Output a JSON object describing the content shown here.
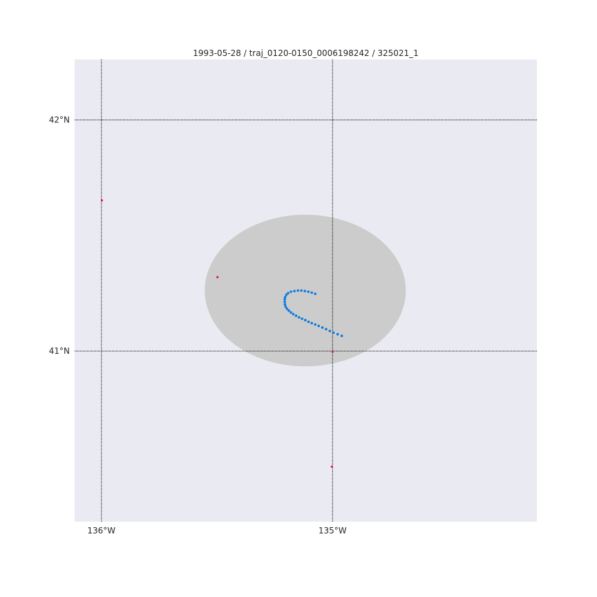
{
  "chart_data": {
    "type": "scatter",
    "title": "1993-05-28 / traj_0120-0150_0006198242 / 325021_1",
    "xlim": [
      -136.116,
      -134.116
    ],
    "ylim": [
      40.262,
      42.262
    ],
    "x_ticks": [
      {
        "value": -136,
        "label": "136°W"
      },
      {
        "value": -135,
        "label": "135°W"
      }
    ],
    "y_ticks": [
      {
        "value": 42,
        "label": "42°N"
      },
      {
        "value": 41,
        "label": "41°N"
      }
    ],
    "grid": true,
    "background_color": "#eaeaf2",
    "region": {
      "shape": "ellipse",
      "center": {
        "lon": -135.118,
        "lat": 41.262
      },
      "radius_lon": 0.435,
      "radius_lat": 0.328,
      "color": "#cccccc"
    },
    "series": [
      {
        "color": "#0b78e0",
        "points": [
          {
            "lon": -135.075,
            "lat": 41.248
          },
          {
            "lon": -135.09,
            "lat": 41.253
          },
          {
            "lon": -135.105,
            "lat": 41.257
          },
          {
            "lon": -135.12,
            "lat": 41.26
          },
          {
            "lon": -135.135,
            "lat": 41.262
          },
          {
            "lon": -135.15,
            "lat": 41.262
          },
          {
            "lon": -135.165,
            "lat": 41.26
          },
          {
            "lon": -135.18,
            "lat": 41.257
          },
          {
            "lon": -135.192,
            "lat": 41.251
          },
          {
            "lon": -135.2,
            "lat": 41.244
          },
          {
            "lon": -135.205,
            "lat": 41.234
          },
          {
            "lon": -135.207,
            "lat": 41.224
          },
          {
            "lon": -135.207,
            "lat": 41.213
          },
          {
            "lon": -135.206,
            "lat": 41.202
          },
          {
            "lon": -135.203,
            "lat": 41.192
          },
          {
            "lon": -135.197,
            "lat": 41.183
          },
          {
            "lon": -135.189,
            "lat": 41.175
          },
          {
            "lon": -135.18,
            "lat": 41.167
          },
          {
            "lon": -135.17,
            "lat": 41.16
          },
          {
            "lon": -135.158,
            "lat": 41.153
          },
          {
            "lon": -135.145,
            "lat": 41.146
          },
          {
            "lon": -135.132,
            "lat": 41.14
          },
          {
            "lon": -135.118,
            "lat": 41.134
          },
          {
            "lon": -135.104,
            "lat": 41.127
          },
          {
            "lon": -135.09,
            "lat": 41.121
          },
          {
            "lon": -135.075,
            "lat": 41.115
          },
          {
            "lon": -135.06,
            "lat": 41.109
          },
          {
            "lon": -135.044,
            "lat": 41.102
          },
          {
            "lon": -135.028,
            "lat": 41.095
          },
          {
            "lon": -135.012,
            "lat": 41.087
          },
          {
            "lon": -134.996,
            "lat": 41.08
          },
          {
            "lon": -134.978,
            "lat": 41.073
          },
          {
            "lon": -134.96,
            "lat": 41.066
          }
        ]
      },
      {
        "color": "#e0106a",
        "points": [
          {
            "lon": -135.998,
            "lat": 41.652
          },
          {
            "lon": -135.498,
            "lat": 41.32
          },
          {
            "lon": -135.0,
            "lat": 40.998
          },
          {
            "lon": -135.003,
            "lat": 40.5
          }
        ]
      }
    ]
  }
}
